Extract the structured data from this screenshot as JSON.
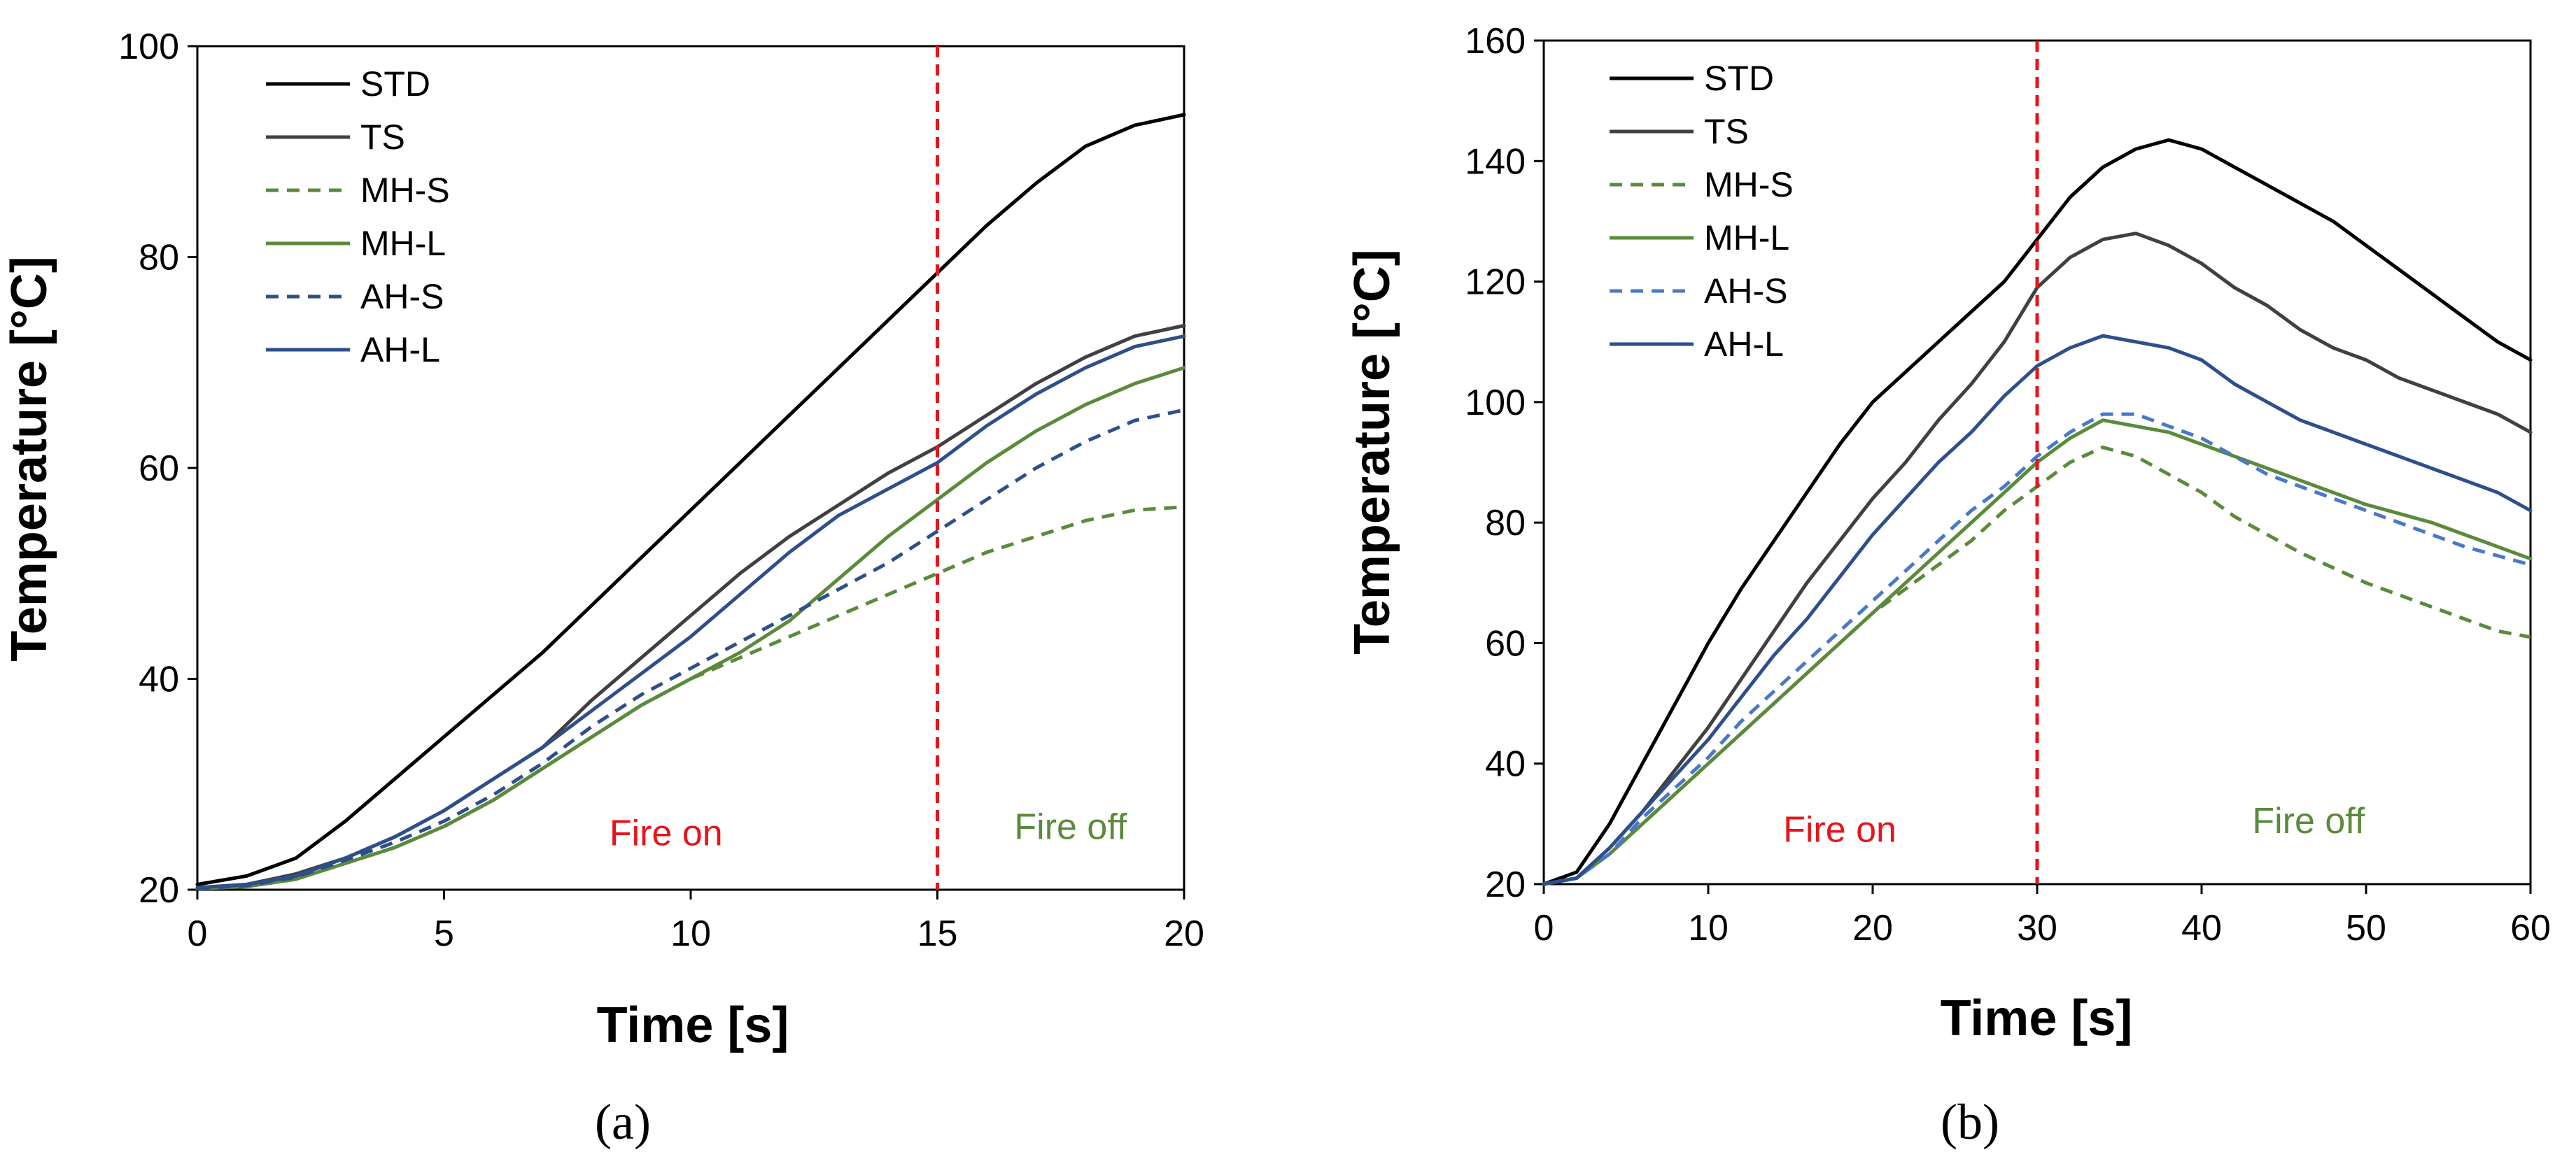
{
  "chart_data": [
    {
      "type": "line",
      "panel_label": "(a)",
      "xlabel": "Time [s]",
      "ylabel": "Temperature [°C]",
      "xlim": [
        0,
        20
      ],
      "ylim": [
        20,
        100
      ],
      "xticks": [
        0,
        5,
        10,
        15,
        20
      ],
      "yticks": [
        20,
        40,
        60,
        80,
        100
      ],
      "vline": {
        "x": 15,
        "color": "#e8141b",
        "style": "dashed"
      },
      "annotations": [
        {
          "text": "Fire on",
          "x": 9.5,
          "y": 24.2,
          "color": "#e8141b"
        },
        {
          "text": "Fire off",
          "x": 17.7,
          "y": 24.8,
          "color": "#5b8a3c"
        }
      ],
      "legend_position": "top-left",
      "series": [
        {
          "name": "STD",
          "color": "#000000",
          "dash": "solid",
          "x": [
            0,
            1,
            2,
            3,
            4,
            5,
            6,
            7,
            8,
            9,
            10,
            11,
            12,
            13,
            14,
            15,
            16,
            17,
            18,
            19,
            20
          ],
          "y": [
            20.5,
            21.3,
            23.0,
            26.5,
            30.5,
            34.5,
            38.5,
            42.5,
            47.0,
            51.5,
            56.0,
            60.5,
            65.0,
            69.5,
            74.0,
            78.5,
            83.0,
            87.0,
            90.5,
            92.5,
            93.5
          ]
        },
        {
          "name": "TS",
          "color": "#404040",
          "dash": "solid",
          "x": [
            0,
            1,
            2,
            3,
            4,
            5,
            6,
            7,
            8,
            9,
            10,
            11,
            12,
            13,
            14,
            15,
            16,
            17,
            18,
            19,
            20
          ],
          "y": [
            20.2,
            20.5,
            21.5,
            23.0,
            25.0,
            27.5,
            30.5,
            33.5,
            38.0,
            42.0,
            46.0,
            50.0,
            53.5,
            56.5,
            59.5,
            62.0,
            65.0,
            68.0,
            70.5,
            72.5,
            73.5
          ]
        },
        {
          "name": "MH-S",
          "color": "#5b8a3c",
          "dash": "dashed",
          "x": [
            0,
            1,
            2,
            3,
            4,
            5,
            6,
            7,
            8,
            9,
            10,
            11,
            12,
            13,
            14,
            15,
            16,
            17,
            18,
            19,
            20
          ],
          "y": [
            20.1,
            20.3,
            21.0,
            22.5,
            24.0,
            26.0,
            28.5,
            31.5,
            34.5,
            37.5,
            40.0,
            42.0,
            44.0,
            46.0,
            48.0,
            50.0,
            52.0,
            53.5,
            55.0,
            56.0,
            56.3
          ]
        },
        {
          "name": "MH-L",
          "color": "#5b8a3c",
          "dash": "solid",
          "x": [
            0,
            1,
            2,
            3,
            4,
            5,
            6,
            7,
            8,
            9,
            10,
            11,
            12,
            13,
            14,
            15,
            16,
            17,
            18,
            19,
            20
          ],
          "y": [
            20.1,
            20.3,
            21.0,
            22.5,
            24.0,
            26.0,
            28.5,
            31.5,
            34.5,
            37.5,
            40.0,
            42.5,
            45.5,
            49.5,
            53.5,
            57.0,
            60.5,
            63.5,
            66.0,
            68.0,
            69.5
          ]
        },
        {
          "name": "AH-S",
          "color": "#2e4f8a",
          "dash": "dashed",
          "x": [
            0,
            1,
            2,
            3,
            4,
            5,
            6,
            7,
            8,
            9,
            10,
            11,
            12,
            13,
            14,
            15,
            16,
            17,
            18,
            19,
            20
          ],
          "y": [
            20.1,
            20.4,
            21.2,
            22.8,
            24.5,
            26.5,
            29.0,
            32.0,
            35.5,
            38.5,
            41.0,
            43.5,
            46.0,
            48.5,
            51.0,
            54.0,
            57.0,
            60.0,
            62.5,
            64.5,
            65.5
          ]
        },
        {
          "name": "AH-L",
          "color": "#2e4f8a",
          "dash": "solid",
          "x": [
            0,
            1,
            2,
            3,
            4,
            5,
            6,
            7,
            8,
            9,
            10,
            11,
            12,
            13,
            14,
            15,
            16,
            17,
            18,
            19,
            20
          ],
          "y": [
            20.2,
            20.5,
            21.3,
            23.0,
            25.0,
            27.5,
            30.5,
            33.5,
            37.0,
            40.5,
            44.0,
            48.0,
            52.0,
            55.5,
            58.0,
            60.5,
            64.0,
            67.0,
            69.5,
            71.5,
            72.5
          ]
        }
      ]
    },
    {
      "type": "line",
      "panel_label": "(b)",
      "xlabel": "Time [s]",
      "ylabel": "Temperature [°C]",
      "xlim": [
        0,
        60
      ],
      "ylim": [
        20,
        160
      ],
      "xticks": [
        0,
        10,
        20,
        30,
        40,
        50,
        60
      ],
      "yticks": [
        20,
        40,
        60,
        80,
        100,
        120,
        140,
        160
      ],
      "vline": {
        "x": 30,
        "color": "#e8141b",
        "style": "dashed"
      },
      "annotations": [
        {
          "text": "Fire on",
          "x": 18,
          "y": 27,
          "color": "#e8141b"
        },
        {
          "text": "Fire off",
          "x": 46.5,
          "y": 28.5,
          "color": "#5b8a3c"
        }
      ],
      "legend_position": "top-left",
      "series": [
        {
          "name": "STD",
          "color": "#000000",
          "dash": "solid",
          "x": [
            0,
            2,
            4,
            6,
            8,
            10,
            12,
            14,
            16,
            18,
            20,
            22,
            24,
            26,
            28,
            30,
            32,
            34,
            36,
            38,
            40,
            42,
            44,
            46,
            48,
            50,
            52,
            54,
            56,
            58,
            60
          ],
          "y": [
            20,
            22,
            30,
            40,
            50,
            60,
            69,
            77,
            85,
            93,
            100,
            105,
            110,
            115,
            120,
            127,
            134,
            139,
            142,
            143.5,
            142,
            139,
            136,
            133,
            130,
            126,
            122,
            118,
            114,
            110,
            107
          ]
        },
        {
          "name": "TS",
          "color": "#404040",
          "dash": "solid",
          "x": [
            0,
            2,
            4,
            6,
            8,
            10,
            12,
            14,
            16,
            18,
            20,
            22,
            24,
            26,
            28,
            30,
            32,
            34,
            36,
            38,
            40,
            42,
            44,
            46,
            48,
            50,
            52,
            54,
            56,
            58,
            60
          ],
          "y": [
            20,
            21,
            26,
            32,
            39,
            46,
            54,
            62,
            70,
            77,
            84,
            90,
            97,
            103,
            110,
            119,
            124,
            127,
            128,
            126,
            123,
            119,
            116,
            112,
            109,
            107,
            104,
            102,
            100,
            98,
            95
          ]
        },
        {
          "name": "MH-S",
          "color": "#5b8a3c",
          "dash": "dashed",
          "x": [
            0,
            2,
            4,
            6,
            8,
            10,
            12,
            14,
            16,
            18,
            20,
            22,
            24,
            26,
            28,
            30,
            32,
            34,
            36,
            38,
            40,
            42,
            44,
            46,
            48,
            50,
            52,
            54,
            56,
            58,
            60
          ],
          "y": [
            20,
            21,
            25,
            30,
            35,
            40,
            45,
            50,
            55,
            60,
            65,
            69,
            73,
            77,
            82,
            86,
            90,
            92.5,
            91,
            88,
            85,
            81,
            78,
            75,
            72.5,
            70,
            68,
            66,
            64,
            62,
            61
          ]
        },
        {
          "name": "MH-L",
          "color": "#5b8a3c",
          "dash": "solid",
          "x": [
            0,
            2,
            4,
            6,
            8,
            10,
            12,
            14,
            16,
            18,
            20,
            22,
            24,
            26,
            28,
            30,
            32,
            34,
            36,
            38,
            40,
            42,
            44,
            46,
            48,
            50,
            52,
            54,
            56,
            58,
            60
          ],
          "y": [
            20,
            21,
            25,
            30,
            35,
            40,
            45,
            50,
            55,
            60,
            65,
            70,
            75,
            80,
            85,
            90,
            94,
            97,
            96,
            95,
            93,
            91,
            89,
            87,
            85,
            83,
            81.5,
            80,
            78,
            76,
            74
          ]
        },
        {
          "name": "AH-S",
          "color": "#4a78c8",
          "dash": "dashed",
          "x": [
            0,
            2,
            4,
            6,
            8,
            10,
            12,
            14,
            16,
            18,
            20,
            22,
            24,
            26,
            28,
            30,
            32,
            34,
            36,
            38,
            40,
            42,
            44,
            46,
            48,
            50,
            52,
            54,
            56,
            58,
            60
          ],
          "y": [
            20,
            21,
            25,
            31,
            36,
            41,
            47,
            52,
            57,
            62,
            67,
            72,
            77,
            82,
            86,
            91,
            95,
            98,
            98,
            96,
            94,
            91,
            88,
            86,
            84,
            82,
            80,
            78,
            76,
            74.5,
            73
          ]
        },
        {
          "name": "AH-L",
          "color": "#2e4f8a",
          "dash": "solid",
          "x": [
            0,
            2,
            4,
            6,
            8,
            10,
            12,
            14,
            16,
            18,
            20,
            22,
            24,
            26,
            28,
            30,
            32,
            34,
            36,
            38,
            40,
            42,
            44,
            46,
            48,
            50,
            52,
            54,
            56,
            58,
            60
          ],
          "y": [
            20,
            21,
            26,
            32,
            38,
            44,
            51,
            58,
            64,
            71,
            78,
            84,
            90,
            95,
            101,
            106,
            109,
            111,
            110,
            109,
            107,
            103,
            100,
            97,
            95,
            93,
            91,
            89,
            87,
            85,
            82
          ]
        }
      ]
    }
  ]
}
